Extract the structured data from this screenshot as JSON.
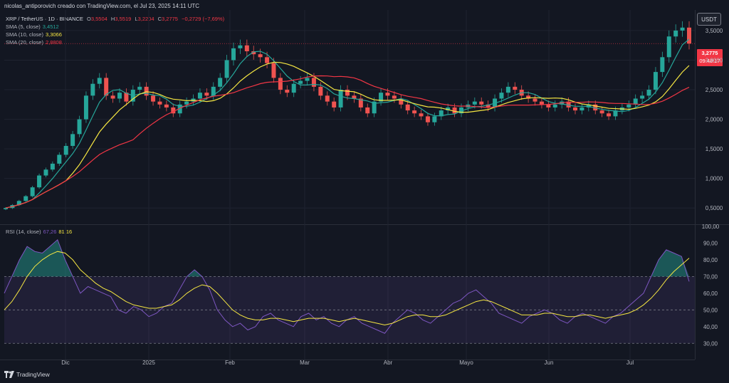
{
  "header": {
    "text": "nicolas_antiporovich creado con TradingView.com, el Jul 23, 2025 14:11 UTC"
  },
  "symbol": {
    "title": "XRP / TetherUS · 1D · BINANCE",
    "open_label": "O",
    "open": "3,5504",
    "high_label": "H",
    "high": "3,5519",
    "low_label": "L",
    "low": "3,2204",
    "close_label": "C",
    "close": "3,2775",
    "change": "−0,2729 (−7,69%)"
  },
  "indicators": [
    {
      "label": "SMA (5, close)",
      "value": "3,4512",
      "color": "#26a69a"
    },
    {
      "label": "SMA (10, close)",
      "value": "3,3066",
      "color": "#f5e642"
    },
    {
      "label": "SMA (20, close)",
      "value": "2,8808",
      "color": "#f23645"
    }
  ],
  "rsi_legend": {
    "label": "RSI (14, close)",
    "value1": "67,26",
    "value2": "81,16",
    "color1": "#7e57c2",
    "color2": "#f5e642"
  },
  "currency_button": "USDT",
  "price_tag": {
    "price": "3,2775",
    "countdown": "09:48:17"
  },
  "footer": {
    "brand": "TradingView"
  },
  "chart_data": [
    {
      "type": "candlestick",
      "title": "XRP / TetherUS · 1D · BINANCE",
      "x_tick_labels": [
        "Dic",
        "2025",
        "Feb",
        "Mar",
        "Abr",
        "Mayo",
        "Jun",
        "Jul"
      ],
      "y_tick_labels": [
        "3,5000",
        "3,0000",
        "2,5000",
        "2,0000",
        "1,5000",
        "1,0000",
        "0,5000"
      ],
      "ylim": [
        0.25,
        3.8
      ],
      "grid": true,
      "series": [
        {
          "name": "XRP/USDT close (approx.)",
          "values": [
            0.5,
            0.55,
            0.62,
            0.7,
            0.85,
            1.05,
            1.15,
            1.25,
            1.4,
            1.55,
            1.75,
            2.0,
            2.4,
            2.6,
            2.7,
            2.4,
            2.35,
            2.45,
            2.3,
            2.5,
            2.55,
            2.4,
            2.3,
            2.25,
            2.2,
            2.1,
            2.25,
            2.3,
            2.35,
            2.45,
            2.4,
            2.55,
            2.7,
            3.0,
            3.2,
            3.25,
            3.15,
            3.1,
            3.05,
            2.95,
            2.7,
            2.5,
            2.45,
            2.6,
            2.65,
            2.7,
            2.55,
            2.4,
            2.3,
            2.2,
            2.5,
            2.4,
            2.35,
            2.2,
            2.1,
            2.3,
            2.45,
            2.4,
            2.35,
            2.25,
            2.15,
            2.1,
            2.05,
            1.95,
            2.05,
            2.15,
            2.2,
            2.1,
            2.2,
            2.25,
            2.3,
            2.25,
            2.2,
            2.35,
            2.45,
            2.55,
            2.5,
            2.4,
            2.35,
            2.3,
            2.25,
            2.2,
            2.25,
            2.3,
            2.2,
            2.15,
            2.2,
            2.25,
            2.15,
            2.1,
            2.05,
            2.15,
            2.2,
            2.25,
            2.35,
            2.4,
            2.5,
            2.8,
            3.05,
            3.4,
            3.5,
            3.55,
            3.28
          ]
        },
        {
          "name": "SMA (5, close)",
          "values": []
        },
        {
          "name": "SMA (10, close)",
          "values": []
        },
        {
          "name": "SMA (20, close)",
          "values": []
        }
      ]
    },
    {
      "type": "line",
      "title": "RSI (14, close)",
      "y_tick_labels": [
        "100,00",
        "90,00",
        "80,00",
        "70,00",
        "60,00",
        "50,00",
        "40,00",
        "30,00"
      ],
      "ylim": [
        25,
        100
      ],
      "bands": [
        70,
        50,
        30
      ],
      "series": [
        {
          "name": "RSI (14, close)",
          "values": [
            60,
            70,
            80,
            88,
            85,
            84,
            88,
            92,
            80,
            70,
            60,
            64,
            62,
            60,
            58,
            50,
            48,
            52,
            50,
            46,
            48,
            52,
            54,
            62,
            70,
            74,
            70,
            62,
            50,
            44,
            40,
            42,
            38,
            40,
            46,
            48,
            44,
            42,
            40,
            46,
            48,
            44,
            46,
            42,
            40,
            44,
            46,
            42,
            40,
            38,
            36,
            42,
            46,
            50,
            48,
            44,
            42,
            46,
            50,
            54,
            56,
            60,
            62,
            58,
            54,
            48,
            46,
            44,
            42,
            46,
            48,
            50,
            48,
            44,
            42,
            46,
            48,
            46,
            44,
            42,
            46,
            48,
            52,
            56,
            60,
            70,
            80,
            86,
            84,
            82,
            67
          ]
        },
        {
          "name": "RSI-based MA",
          "values": [
            50,
            55,
            62,
            70,
            76,
            80,
            83,
            85,
            84,
            80,
            74,
            70,
            66,
            63,
            61,
            58,
            55,
            53,
            52,
            51,
            51,
            52,
            53,
            56,
            60,
            63,
            65,
            64,
            60,
            55,
            50,
            47,
            45,
            44,
            44,
            45,
            45,
            44,
            43,
            44,
            45,
            45,
            45,
            44,
            43,
            44,
            45,
            44,
            43,
            42,
            41,
            42,
            44,
            46,
            47,
            47,
            46,
            46,
            47,
            49,
            51,
            53,
            55,
            56,
            55,
            53,
            51,
            49,
            47,
            47,
            47,
            48,
            48,
            47,
            46,
            46,
            47,
            47,
            46,
            45,
            46,
            47,
            48,
            50,
            53,
            57,
            62,
            68,
            73,
            77,
            81
          ]
        }
      ]
    }
  ]
}
